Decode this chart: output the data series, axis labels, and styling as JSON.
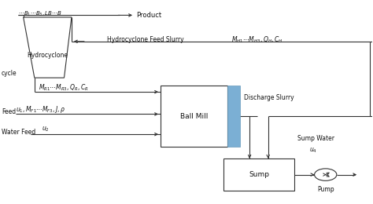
{
  "bg_color": "#ffffff",
  "line_color": "#333333",
  "blue_color": "#7bafd4",
  "text_color": "#111111",
  "fig_width": 4.74,
  "fig_height": 2.6,
  "dpi": 100,
  "labels": {
    "product": "Product",
    "top_params": "$\\cdots B_1\\cdots B_3, LB\\cdots B$",
    "hydrocyclone_feed": "Hydrocyclone Feed Slurry",
    "hydrocyclone_params": "$M_{H1}\\cdots M_{H3}, Q_H, C_H$",
    "hydrocyclone": "Hydrocyclone",
    "cycle": "cycle",
    "recycle_params": "$M_{R1}\\cdots M_{R3}, Q_R, C_R$",
    "feed_label": "Feed",
    "feed_params": "$u_1, M_{F1}\\cdots M_{F3}, J, \\rho$",
    "water_feed": "Water Feed",
    "water_u2": "$u_2$",
    "ball_mill": "Ball Mill",
    "discharge": "Discharge Slurry",
    "sump_water": "Sump Water",
    "sump_water_u4": "$u_4$",
    "sump": "Sump",
    "pump": "Pump"
  }
}
